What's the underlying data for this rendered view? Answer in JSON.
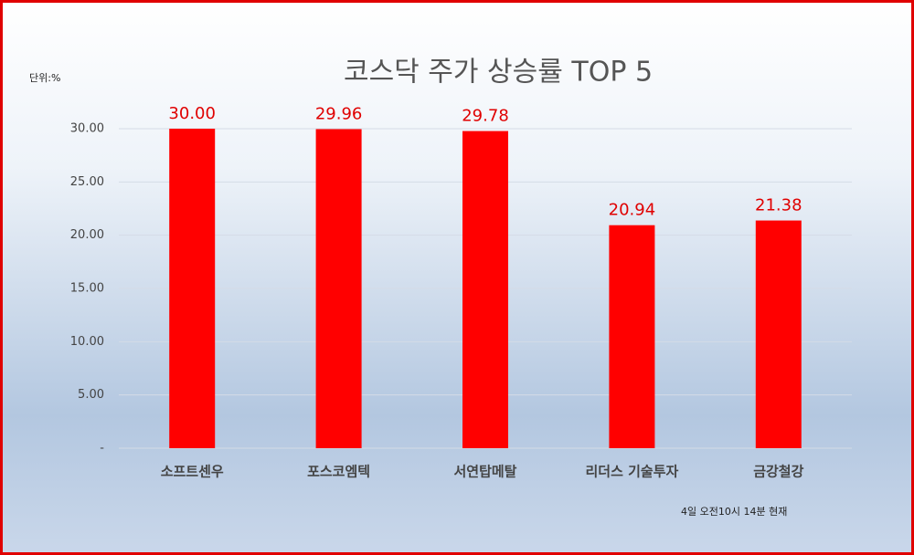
{
  "chart_data": {
    "type": "bar",
    "title": "코스닥 주가 상승률 TOP 5",
    "unit_label": "단위:%",
    "note": "4일 오전10시 14분 현재",
    "categories": [
      "소프트센우",
      "포스코엠텍",
      "서연탑메탈",
      "리더스 기술투자",
      "금강철강"
    ],
    "values": [
      30.0,
      29.96,
      29.78,
      20.94,
      21.38
    ],
    "value_labels": [
      "30.00",
      "29.96",
      "29.78",
      "20.94",
      "21.38"
    ],
    "color": "#ff0000",
    "ylim": [
      0,
      30
    ],
    "yticks": [
      {
        "value": 0,
        "label": "-"
      },
      {
        "value": 5,
        "label": "5.00"
      },
      {
        "value": 10,
        "label": "10.00"
      },
      {
        "value": 15,
        "label": "15.00"
      },
      {
        "value": 20,
        "label": "20.00"
      },
      {
        "value": 25,
        "label": "25.00"
      },
      {
        "value": 30,
        "label": "30.00"
      }
    ],
    "grid": true
  }
}
